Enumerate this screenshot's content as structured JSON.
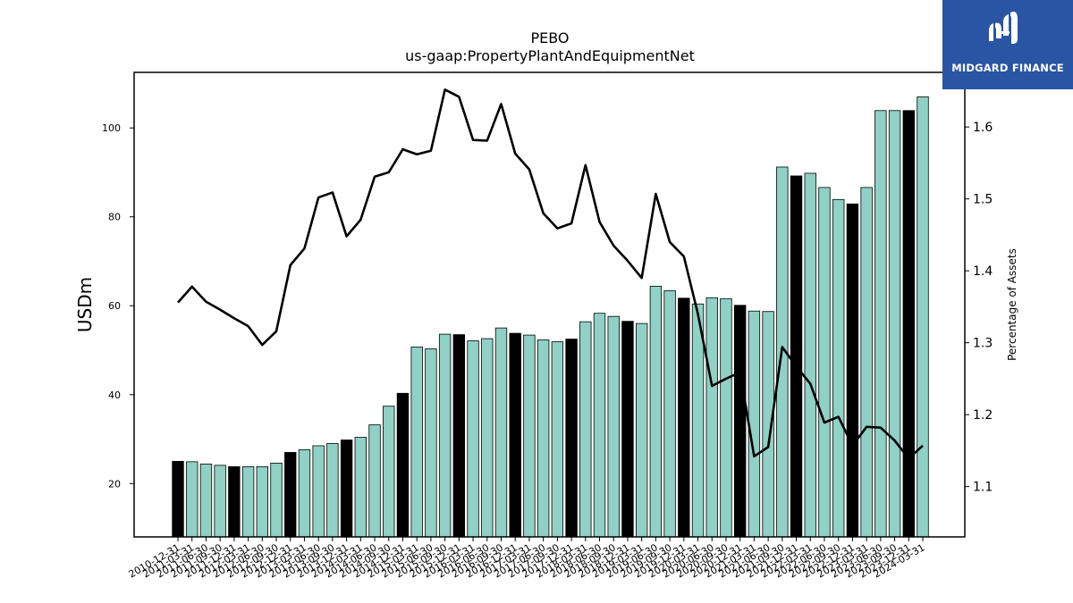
{
  "chart_data": {
    "type": "bar",
    "title": "PEBO",
    "subtitle": "us-gaap:PropertyPlantAndEquipmentNet",
    "ylabel": "USDm",
    "y2label": "Percentage of Assets",
    "ylim": [
      8,
      112.5
    ],
    "y2lim": [
      1.03,
      1.676
    ],
    "yticks": [
      20,
      40,
      60,
      80,
      100
    ],
    "y2ticks": [
      1.1,
      1.2,
      1.3,
      1.4,
      1.5,
      1.6
    ],
    "grid": false,
    "colors": {
      "bar": "#8fd1c4",
      "bar_q4": "#000000",
      "line": "#000000"
    },
    "categories": [
      "2010-12-31",
      "2011-03-31",
      "2011-06-30",
      "2011-09-30",
      "2011-12-31",
      "2012-03-31",
      "2012-06-30",
      "2012-09-30",
      "2012-12-31",
      "2013-03-31",
      "2013-06-30",
      "2013-09-30",
      "2013-12-31",
      "2014-03-31",
      "2014-06-30",
      "2014-09-30",
      "2014-12-31",
      "2015-03-31",
      "2015-06-30",
      "2015-09-30",
      "2015-12-31",
      "2016-03-31",
      "2016-06-30",
      "2016-09-30",
      "2016-12-31",
      "2017-03-31",
      "2017-06-30",
      "2017-09-30",
      "2017-12-31",
      "2018-03-31",
      "2018-06-30",
      "2018-09-30",
      "2018-12-31",
      "2019-03-31",
      "2019-06-30",
      "2019-09-30",
      "2019-12-31",
      "2020-03-31",
      "2020-06-30",
      "2020-09-30",
      "2020-12-31",
      "2021-03-31",
      "2021-06-30",
      "2021-09-30",
      "2021-12-31",
      "2022-03-31",
      "2022-06-30",
      "2022-09-30",
      "2022-12-31",
      "2023-03-31",
      "2023-06-30",
      "2023-09-30",
      "2023-12-31",
      "2024-03-31"
    ],
    "series": [
      {
        "type": "bar",
        "values": [
          25.0,
          24.9,
          24.4,
          24.1,
          23.8,
          23.8,
          23.8,
          24.6,
          27.0,
          27.6,
          28.5,
          29.0,
          29.8,
          30.4,
          33.2,
          37.4,
          40.3,
          50.7,
          50.3,
          53.6,
          53.5,
          52.1,
          52.6,
          55.0,
          53.8,
          53.4,
          52.3,
          51.9,
          52.5,
          56.4,
          58.3,
          57.6,
          56.5,
          56.0,
          64.4,
          63.4,
          61.7,
          60.4,
          61.8,
          61.6,
          60.1,
          58.8,
          58.7,
          91.2,
          89.2,
          89.8,
          86.6,
          83.9,
          82.9,
          86.6,
          103.9,
          103.9,
          103.9,
          107.0
        ]
      },
      {
        "type": "line",
        "axis": "right",
        "values": [
          1.356,
          1.378,
          1.357,
          1.346,
          1.334,
          1.323,
          1.297,
          1.316,
          1.408,
          1.431,
          1.502,
          1.509,
          1.448,
          1.471,
          1.531,
          1.537,
          1.569,
          1.562,
          1.567,
          1.652,
          1.642,
          1.582,
          1.581,
          1.632,
          1.563,
          1.541,
          1.48,
          1.459,
          1.466,
          1.547,
          1.468,
          1.435,
          1.414,
          1.39,
          1.507,
          1.44,
          1.42,
          1.34,
          1.24,
          1.25,
          1.259,
          1.142,
          1.155,
          1.294,
          1.267,
          1.243,
          1.189,
          1.197,
          1.157,
          1.183,
          1.182,
          1.164,
          1.139,
          1.157
        ]
      }
    ]
  },
  "logo": {
    "text": "MIDGARD FINANCE"
  }
}
